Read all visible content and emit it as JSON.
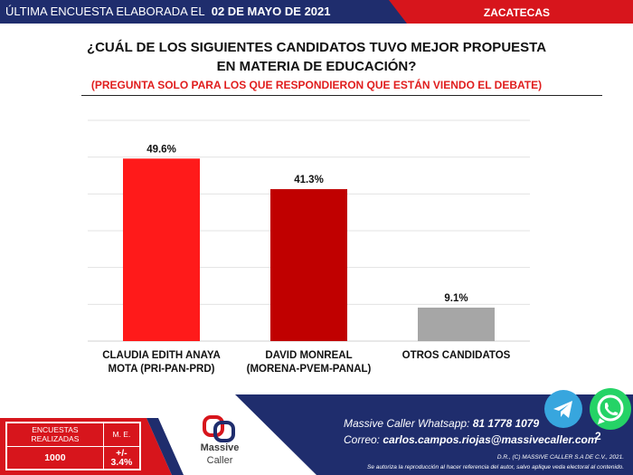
{
  "header": {
    "left_text": "ÚLTIMA ENCUESTA ELABORADA EL",
    "date": "02 DE MAYO DE 2021",
    "state": "ZACATECAS"
  },
  "titles": {
    "line1": "¿CUÁL DE LOS SIGUIENTES CANDIDATOS TUVO MEJOR PROPUESTA",
    "line2": "EN MATERIA DE EDUCACIÓN?",
    "subtitle": "(PREGUNTA SOLO PARA LOS QUE RESPONDIERON QUE ESTÁN VIENDO EL DEBATE)"
  },
  "chart_data": {
    "type": "bar",
    "categories": [
      [
        "CLAUDIA EDITH ANAYA",
        "MOTA (PRI-PAN-PRD)"
      ],
      [
        "DAVID MONREAL",
        "(MORENA-PVEM-PANAL)"
      ],
      [
        "OTROS CANDIDATOS"
      ]
    ],
    "values": [
      49.6,
      41.3,
      9.1
    ],
    "value_labels": [
      "49.6%",
      "41.3%",
      "9.1%"
    ],
    "bar_colors": [
      "#ff1a1a",
      "#c00000",
      "#a6a6a6"
    ],
    "ylim": [
      0,
      60
    ],
    "grid": true,
    "legend": "none"
  },
  "footer": {
    "stats": {
      "header1": "ENCUESTAS REALIZADAS",
      "header2": "M. E.",
      "value1": "1000",
      "value2": "+/- 3.4%"
    },
    "logo_word1": "Massive",
    "logo_word2": "Caller",
    "whatsapp_label": "Massive Caller Whatsapp:",
    "whatsapp_number": "81 1778 1079",
    "email_label": "Correo:",
    "email": "carlos.campos.riojas@massivecaller.com",
    "legal1": "D.R., (C) MASSIVE CALLER S.A DE C.V., 2021.",
    "legal2": "Se autoriza la reproducción al hacer referencia del autor, salvo aplique veda electoral al contenido.",
    "page_number": "2"
  },
  "colors": {
    "navy": "#1f2d6d",
    "red": "#d7151c",
    "accent_red": "#e01d1d"
  }
}
